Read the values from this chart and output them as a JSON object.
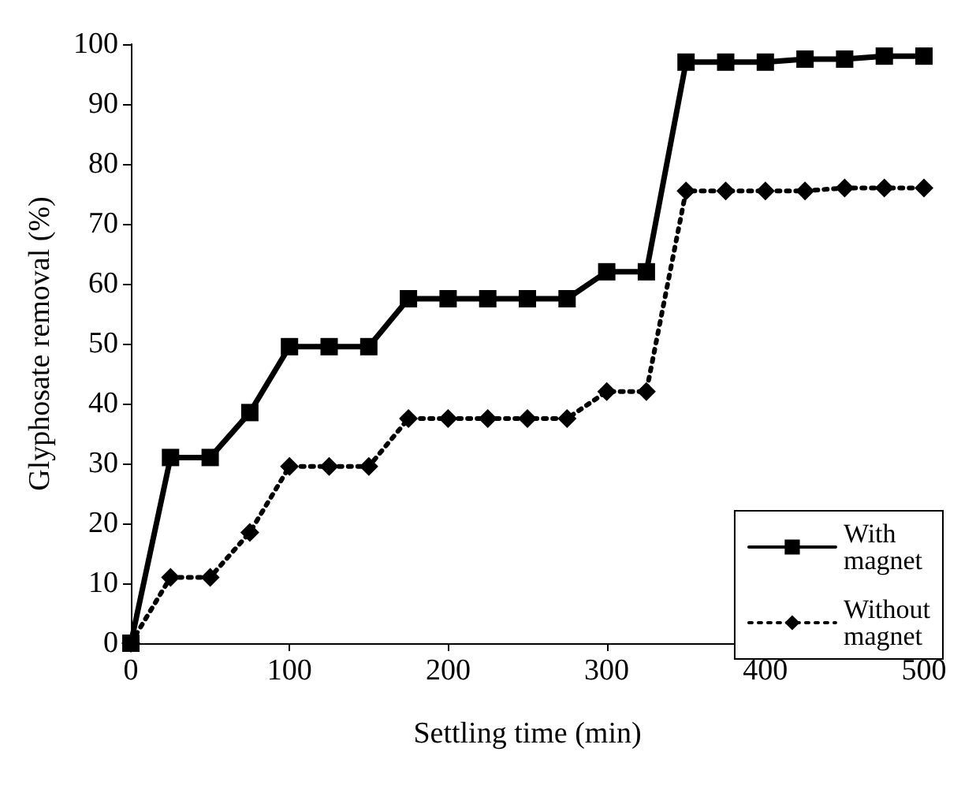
{
  "chart_data": {
    "type": "line",
    "xlabel": "Settling time (min)",
    "ylabel": "Glyphosate removal (%)",
    "x": [
      0,
      25,
      50,
      75,
      100,
      125,
      150,
      175,
      200,
      225,
      250,
      275,
      300,
      325,
      350,
      375,
      400,
      425,
      450,
      475,
      500
    ],
    "series": [
      {
        "name": "With magnet",
        "color": "#000000",
        "marker": "square",
        "line_style": "solid",
        "values": [
          0,
          31,
          31,
          38.5,
          49.5,
          49.5,
          49.5,
          57.5,
          57.5,
          57.5,
          57.5,
          57.5,
          62,
          62,
          97,
          97,
          97,
          97.5,
          97.5,
          98,
          98
        ]
      },
      {
        "name": "Without magnet",
        "color": "#000000",
        "marker": "diamond",
        "line_style": "dotted",
        "values": [
          0,
          11,
          11,
          18.5,
          29.5,
          29.5,
          29.5,
          37.5,
          37.5,
          37.5,
          37.5,
          37.5,
          42,
          42,
          75.5,
          75.5,
          75.5,
          75.5,
          76,
          76,
          76
        ]
      }
    ],
    "xlim": [
      0,
      500
    ],
    "xticks": [
      0,
      100,
      200,
      300,
      400,
      500
    ],
    "ylim": [
      0,
      100
    ],
    "yticks": [
      0,
      10,
      20,
      30,
      40,
      50,
      60,
      70,
      80,
      90,
      100
    ],
    "grid": false,
    "legend": "bottom right"
  }
}
